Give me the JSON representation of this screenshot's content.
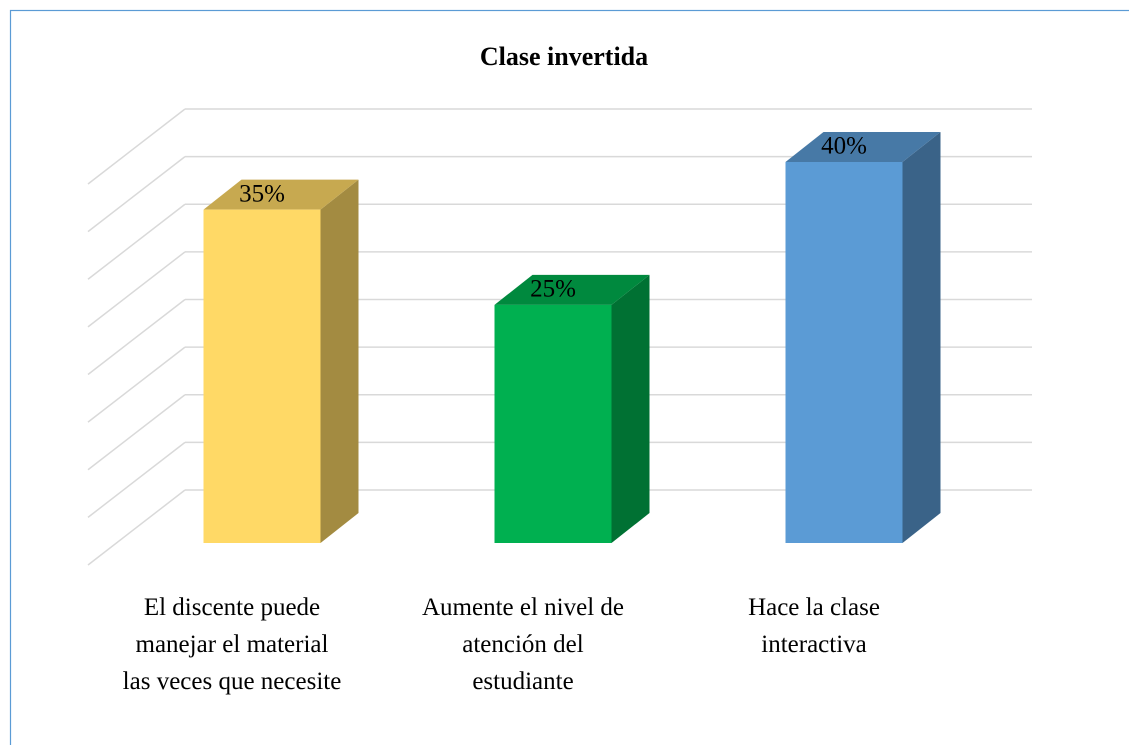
{
  "chart_data": {
    "type": "bar3d",
    "title": "Clase invertida",
    "categories": [
      "El discente puede manejar el material las veces que necesite",
      "Aumente el nivel de atención del estudiante",
      "Hace la clase interactiva"
    ],
    "values": [
      35,
      25,
      40
    ],
    "value_labels": [
      "35%",
      "25%",
      "40%"
    ],
    "colors": [
      "#ffd966",
      "#00b050",
      "#5b9bd5"
    ],
    "ylim": [
      0,
      40
    ],
    "yticks": [
      0,
      5,
      10,
      15,
      20,
      25,
      30,
      35,
      40
    ],
    "grid": true
  }
}
